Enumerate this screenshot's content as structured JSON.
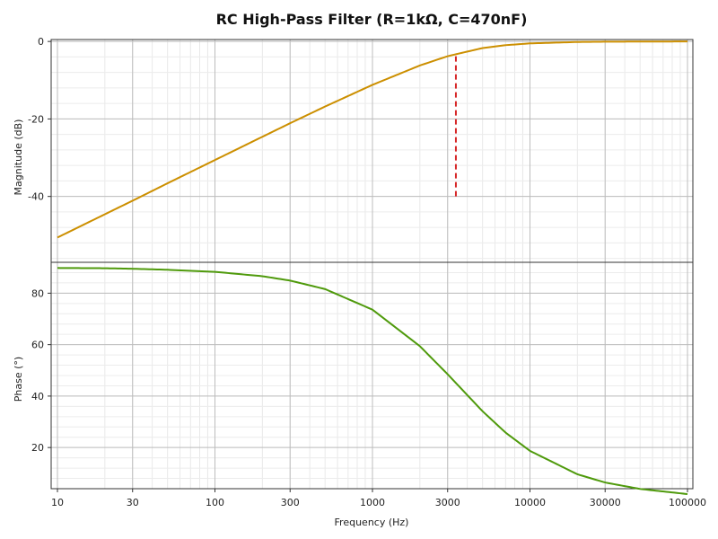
{
  "chart_data": [
    {
      "type": "line",
      "title": "RC High-Pass Filter (R=1kΩ, C=470nF)",
      "ylabel": "Magnitude (dB)",
      "xlabel": "",
      "xscale": "log",
      "xlim": [
        10,
        100000
      ],
      "ylim": [
        -57,
        0.5
      ],
      "yticks": [
        0,
        -20,
        -40
      ],
      "grid": true,
      "series": [
        {
          "color": "#cc8f00",
          "x": [
            10,
            20,
            30,
            50,
            100,
            200,
            300,
            500,
            1000,
            2000,
            3000,
            5000,
            7000,
            10000,
            20000,
            30000,
            50000,
            100000
          ],
          "y": [
            -50.6,
            -44.6,
            -41.1,
            -36.6,
            -30.6,
            -24.6,
            -21.1,
            -16.8,
            -11.2,
            -6.2,
            -3.8,
            -1.7,
            -0.95,
            -0.5,
            -0.13,
            -0.06,
            -0.02,
            0.0
          ]
        }
      ],
      "annotations": [
        {
          "type": "vline",
          "x": 3386,
          "y_from": -40,
          "y_to": -3.0,
          "color": "#d62728",
          "style": "dashed"
        }
      ]
    },
    {
      "type": "line",
      "ylabel": "Phase (°)",
      "xlabel": "Frequency (Hz)",
      "xscale": "log",
      "xlim": [
        10,
        100000
      ],
      "ylim": [
        4,
        92
      ],
      "yticks": [
        20,
        40,
        60,
        80
      ],
      "xticks": [
        10,
        30,
        100,
        300,
        1000,
        3000,
        10000,
        30000,
        100000
      ],
      "xtick_labels": [
        "10",
        "30",
        "100",
        "300",
        "1000",
        "3000",
        "10000",
        "30000",
        "100000"
      ],
      "grid": true,
      "series": [
        {
          "color": "#4f9a0c",
          "x": [
            10,
            20,
            30,
            50,
            100,
            200,
            300,
            500,
            1000,
            2000,
            3000,
            5000,
            7000,
            10000,
            20000,
            30000,
            50000,
            100000
          ],
          "y": [
            89.8,
            89.7,
            89.5,
            89.1,
            88.3,
            86.6,
            84.9,
            81.6,
            73.6,
            59.4,
            48.5,
            34.1,
            25.8,
            18.7,
            9.6,
            6.4,
            3.9,
            1.9
          ]
        }
      ]
    }
  ]
}
